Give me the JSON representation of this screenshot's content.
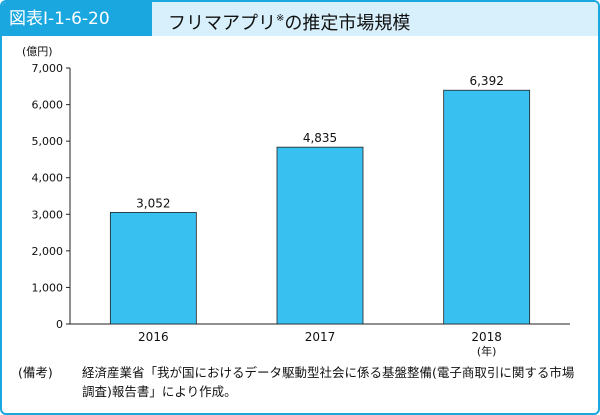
{
  "figure": {
    "tag": "図表Ⅰ-1-6-20",
    "title": "フリマアプリ",
    "title_mark": "※",
    "title_suffix": "の推定市場規模"
  },
  "chart_data": {
    "type": "bar",
    "categories": [
      "2016",
      "2017",
      "2018"
    ],
    "values": [
      3052,
      4835,
      6392
    ],
    "value_labels": [
      "3,052",
      "4,835",
      "6,392"
    ],
    "y_unit": "(億円)",
    "x_unit": "(年)",
    "ylim": [
      0,
      7000
    ],
    "y_ticks": [
      "0",
      "1,000",
      "2,000",
      "3,000",
      "4,000",
      "5,000",
      "6,000",
      "7,000"
    ],
    "grid": false,
    "bar_color": "#38c0f0"
  },
  "note": {
    "label": "(備考)",
    "text": "経済産業省「我が国におけるデータ駆動型社会に係る基盤整備(電子商取引に関する市場調査)報告書」により作成。"
  },
  "colors": {
    "accent": "#1aa7e0",
    "header_bg": "#d8f0fb"
  }
}
